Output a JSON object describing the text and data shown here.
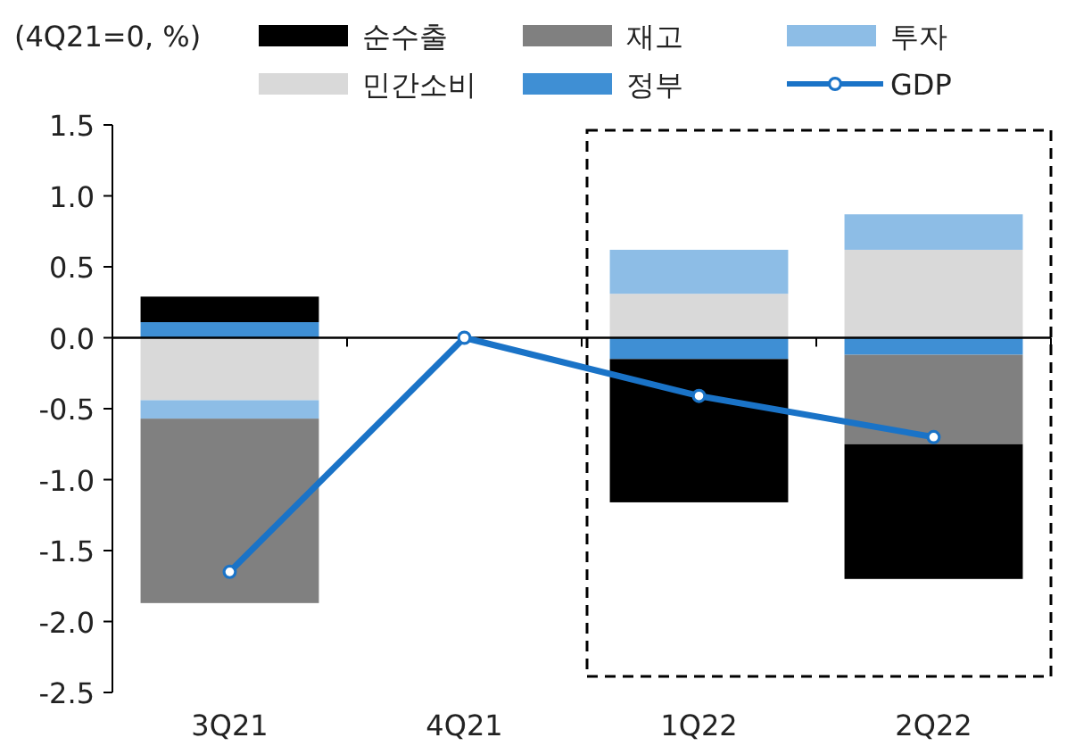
{
  "chart_data": {
    "type": "bar",
    "stacked": true,
    "ylabel": "(4Q21=0,  %)",
    "categories": [
      "3Q21",
      "4Q21",
      "1Q22",
      "2Q22"
    ],
    "series": [
      {
        "name": "정부",
        "color": "#3f8fd4",
        "values": [
          0.11,
          null,
          -0.15,
          -0.12
        ]
      },
      {
        "name": "민간소비",
        "color": "#d9d9d9",
        "values": [
          -0.44,
          null,
          0.31,
          0.62
        ]
      },
      {
        "name": "투자",
        "color": "#8dbde6",
        "values": [
          -0.13,
          null,
          0.31,
          0.25
        ]
      },
      {
        "name": "재고",
        "color": "#808080",
        "values": [
          -1.3,
          null,
          null,
          -0.63
        ]
      },
      {
        "name": "순수출",
        "color": "#000000",
        "values": [
          0.18,
          null,
          -1.01,
          -0.95
        ]
      },
      {
        "name": "GDP",
        "type": "line",
        "color": "#1a73c7",
        "marker": "circle",
        "values": [
          -1.65,
          0,
          -0.41,
          -0.7
        ]
      }
    ],
    "ylim": [
      -2.5,
      1.5
    ],
    "yticks": [
      {
        "value": -2.5,
        "label": "-2.5"
      },
      {
        "value": -2,
        "label": "-2.0"
      },
      {
        "value": -1.5,
        "label": "-1.5"
      },
      {
        "value": -1,
        "label": "-1.0"
      },
      {
        "value": -0.5,
        "label": "-0.5"
      },
      {
        "value": 0,
        "label": "0.0"
      },
      {
        "value": 0.5,
        "label": "0.5"
      },
      {
        "value": 1,
        "label": "1.0"
      },
      {
        "value": 1.5,
        "label": "1.5"
      }
    ],
    "legend": "top"
  }
}
